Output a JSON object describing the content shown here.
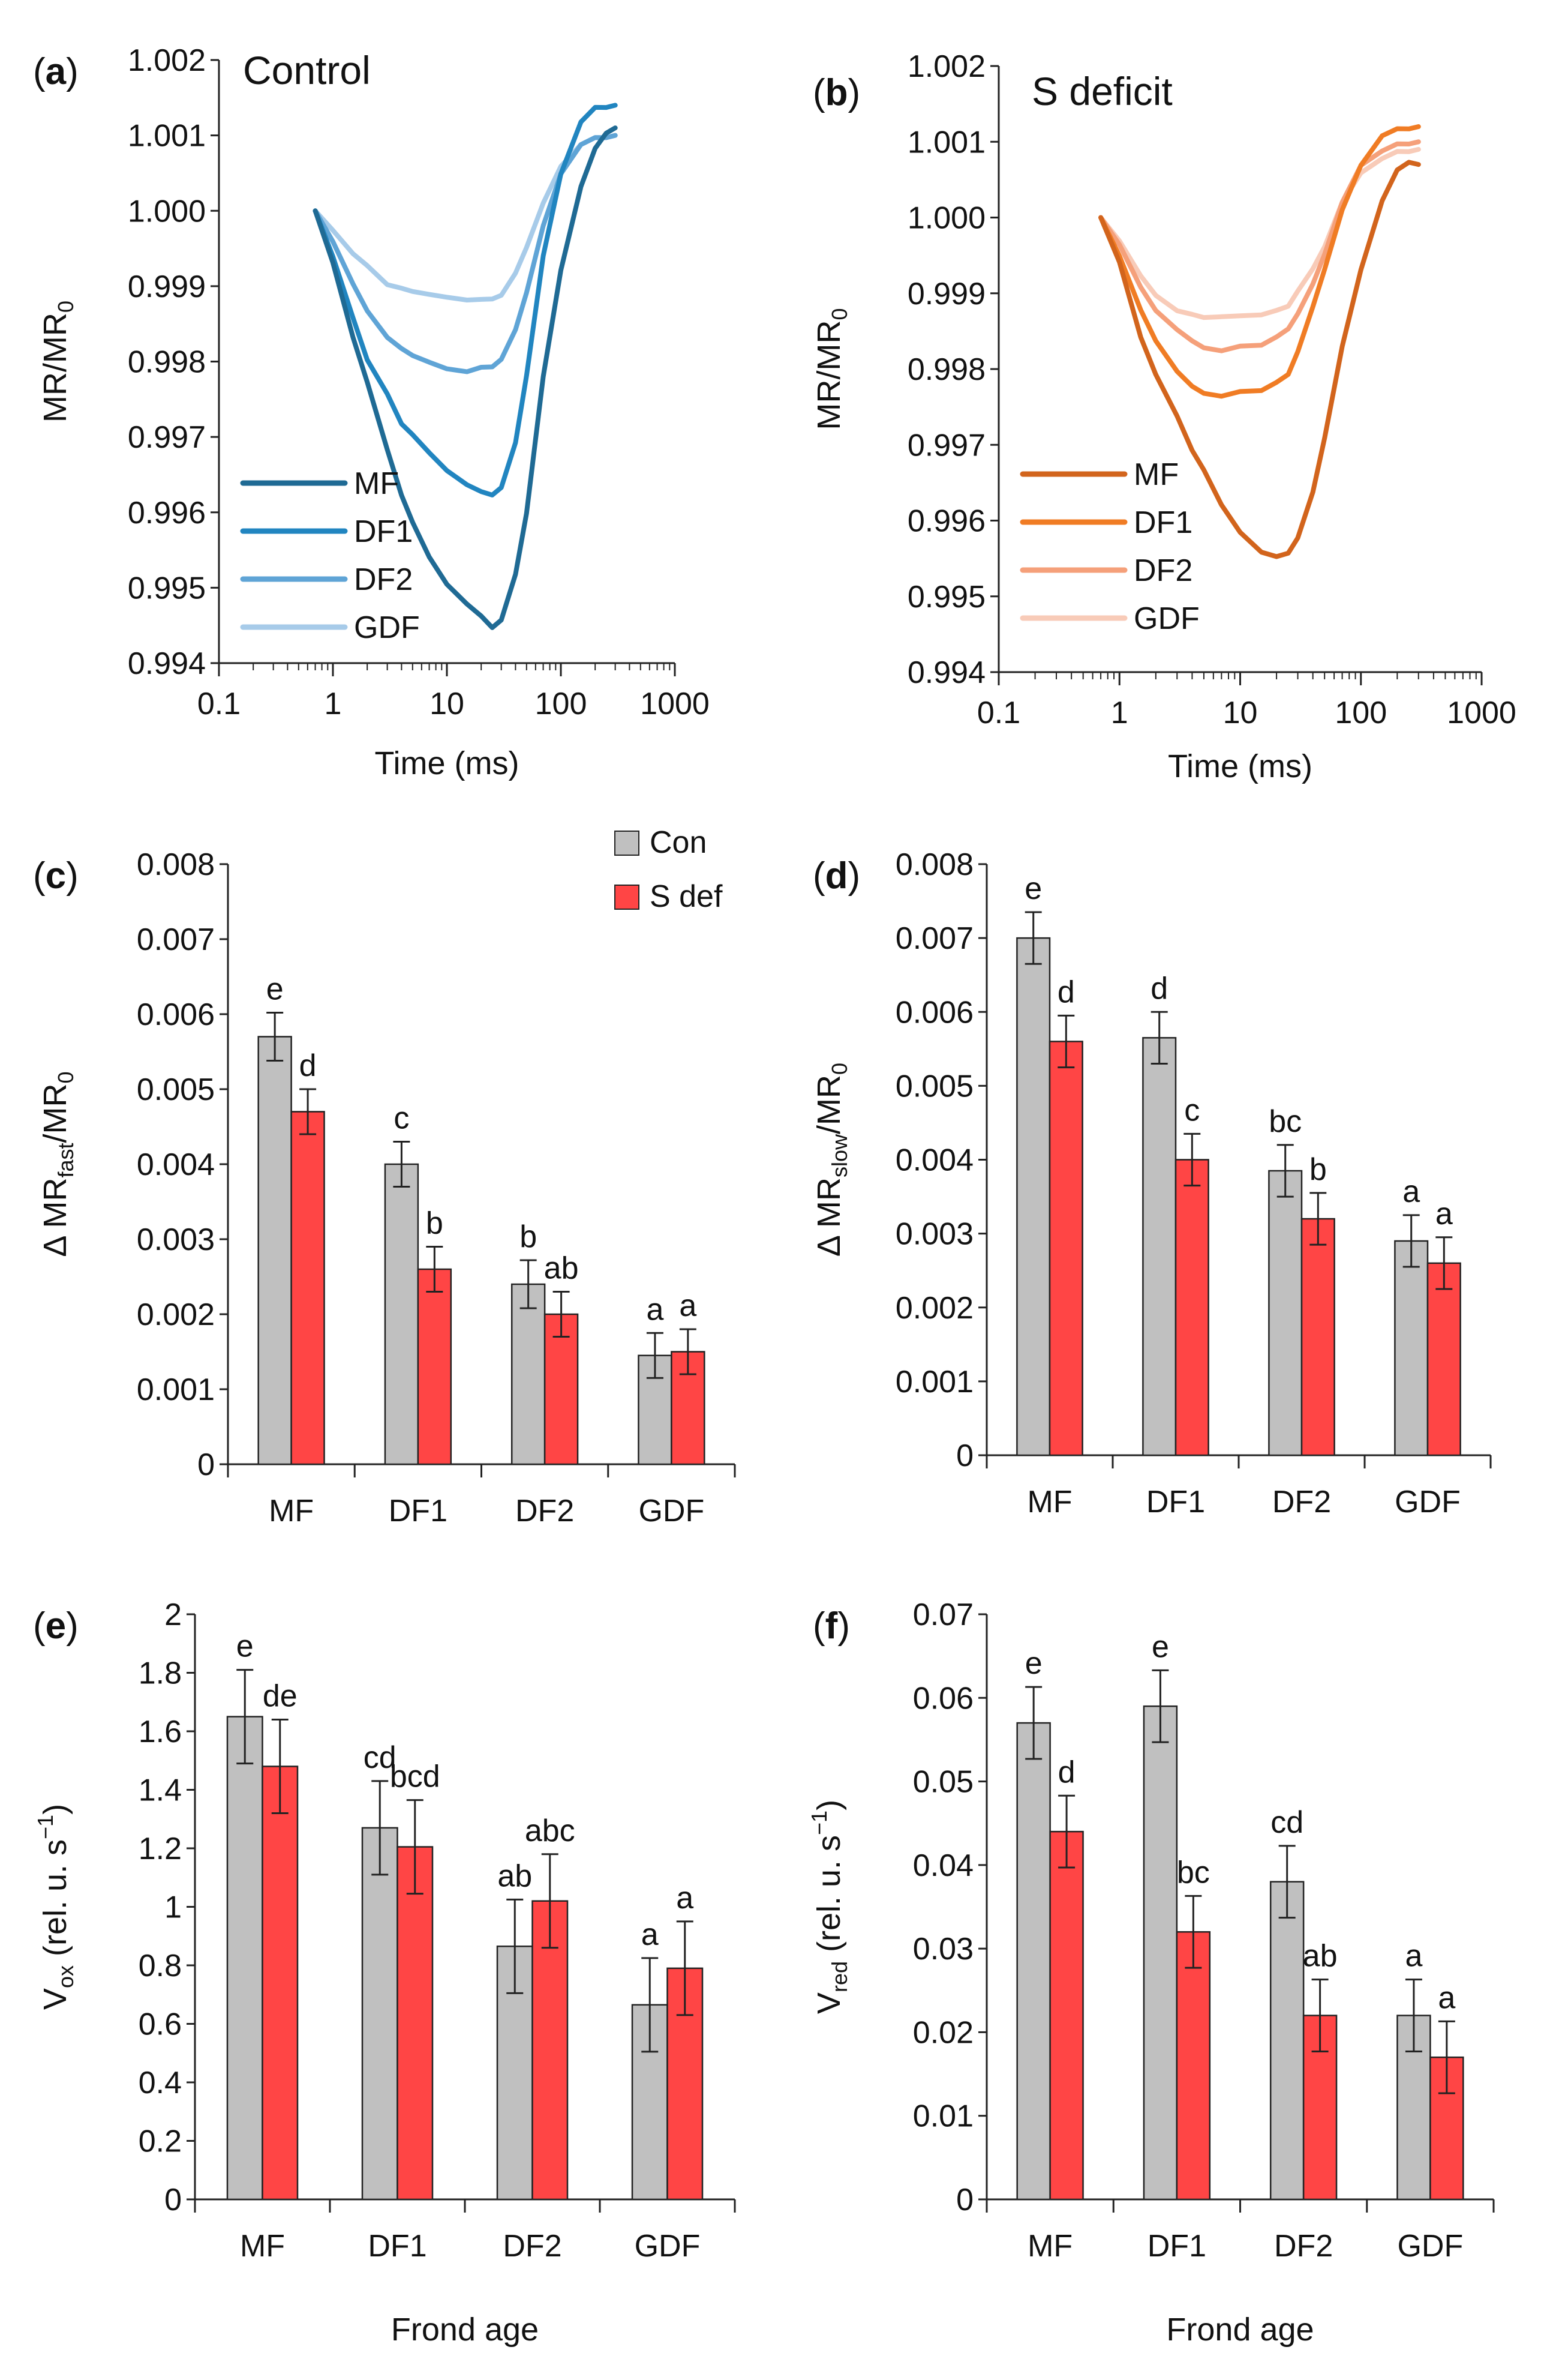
{
  "chart_data": [
    {
      "panel": "a",
      "type": "line",
      "title": "Control",
      "xlabel": "Time (ms)",
      "ylabel": "MR/MR",
      "ylabel_sub": "0",
      "xscale": "log",
      "xlim": [
        0.1,
        1000
      ],
      "ylim": [
        0.994,
        1.002
      ],
      "xticks": [
        "0.1",
        "1",
        "10",
        "100",
        "1000"
      ],
      "yticks": [
        "0.994",
        "0.995",
        "0.996",
        "0.997",
        "0.998",
        "0.999",
        "1.000",
        "1.001",
        "1.002"
      ],
      "legend_position": "bottom-left",
      "series": [
        {
          "name": "MF",
          "color": "#1f6a94",
          "x": [
            0.7,
            1,
            1.5,
            2,
            3,
            4,
            5,
            7,
            10,
            15,
            20,
            25,
            30,
            40,
            50,
            70,
            100,
            150,
            200,
            250,
            300
          ],
          "y": [
            1.0,
            0.9993,
            0.9983,
            0.9977,
            0.9968,
            0.9962,
            0.99585,
            0.9954,
            0.99505,
            0.9948,
            0.99465,
            0.9945,
            0.9946,
            0.9952,
            0.996,
            0.9978,
            0.9992,
            1.0003,
            1.0008,
            1.001,
            1.0011
          ]
        },
        {
          "name": "DF1",
          "color": "#2185c0",
          "x": [
            0.7,
            1,
            1.5,
            2,
            3,
            4,
            5,
            7,
            10,
            15,
            20,
            25,
            30,
            40,
            50,
            70,
            100,
            150,
            200,
            250,
            300
          ],
          "y": [
            1.0,
            0.9994,
            0.9986,
            0.99805,
            0.9976,
            0.9972,
            0.99705,
            0.9968,
            0.99655,
            0.99635,
            0.99625,
            0.9962,
            0.9963,
            0.9969,
            0.9978,
            0.9994,
            1.0005,
            1.0012,
            1.0014,
            1.0014,
            1.0014
          ]
        },
        {
          "name": "DF2",
          "color": "#5fa4d6",
          "x": [
            0.7,
            1,
            1.5,
            2,
            3,
            4,
            5,
            7,
            10,
            15,
            20,
            25,
            30,
            40,
            50,
            70,
            100,
            150,
            200,
            250,
            300
          ],
          "y": [
            1.0,
            0.9996,
            0.99905,
            0.9987,
            0.99835,
            0.9982,
            0.9981,
            0.998,
            0.9979,
            0.99785,
            0.9979,
            0.9979,
            0.998,
            0.9984,
            0.9989,
            0.9998,
            1.0005,
            1.0009,
            1.001,
            1.001,
            1.001
          ]
        },
        {
          "name": "GDF",
          "color": "#a7cbe9",
          "x": [
            0.7,
            1,
            1.5,
            2,
            3,
            4,
            5,
            7,
            10,
            15,
            20,
            25,
            30,
            40,
            50,
            70,
            100,
            150,
            200,
            250,
            300
          ],
          "y": [
            1.0,
            0.99975,
            0.99945,
            0.9993,
            0.99905,
            0.999,
            0.99895,
            0.9989,
            0.99885,
            0.9988,
            0.9988,
            0.9988,
            0.99885,
            0.99915,
            0.9995,
            1.0001,
            1.0006,
            1.0009,
            1.001,
            1.001,
            1.001
          ]
        }
      ]
    },
    {
      "panel": "b",
      "type": "line",
      "title": "S deficit",
      "xlabel": "Time (ms)",
      "ylabel": "MR/MR",
      "ylabel_sub": "0",
      "xscale": "log",
      "xlim": [
        0.1,
        1000
      ],
      "ylim": [
        0.994,
        1.002
      ],
      "xticks": [
        "0.1",
        "1",
        "10",
        "100",
        "1000"
      ],
      "yticks": [
        "0.994",
        "0.995",
        "0.996",
        "0.997",
        "0.998",
        "0.999",
        "1.000",
        "1.001",
        "1.002"
      ],
      "legend_position": "bottom-left",
      "series": [
        {
          "name": "MF",
          "color": "#d2641c",
          "x": [
            0.7,
            1,
            1.5,
            2,
            3,
            4,
            5,
            7,
            10,
            15,
            20,
            25,
            30,
            40,
            50,
            70,
            100,
            150,
            200,
            250,
            300
          ],
          "y": [
            1.0,
            0.9994,
            0.9984,
            0.9979,
            0.99735,
            0.9969,
            0.99665,
            0.9962,
            0.99585,
            0.9956,
            0.99555,
            0.9956,
            0.9958,
            0.9964,
            0.9971,
            0.9983,
            0.9993,
            1.0002,
            1.0006,
            1.0007,
            1.0007
          ]
        },
        {
          "name": "DF1",
          "color": "#f07c24",
          "x": [
            0.7,
            1,
            1.5,
            2,
            3,
            4,
            5,
            7,
            10,
            15,
            20,
            25,
            30,
            40,
            50,
            70,
            100,
            150,
            200,
            250,
            300
          ],
          "y": [
            1.0,
            0.9995,
            0.9988,
            0.9984,
            0.998,
            0.9978,
            0.9977,
            0.99765,
            0.9977,
            0.9977,
            0.9978,
            0.9979,
            0.9982,
            0.9988,
            0.9993,
            1.0001,
            1.0007,
            1.0011,
            1.0012,
            1.0012,
            1.0012
          ]
        },
        {
          "name": "DF2",
          "color": "#f5a07a",
          "x": [
            0.7,
            1,
            1.5,
            2,
            3,
            4,
            5,
            7,
            10,
            15,
            20,
            25,
            30,
            40,
            50,
            70,
            100,
            150,
            200,
            250,
            300
          ],
          "y": [
            1.0,
            0.99965,
            0.9991,
            0.9988,
            0.99855,
            0.9984,
            0.9983,
            0.99825,
            0.9983,
            0.9983,
            0.9984,
            0.9985,
            0.9987,
            0.9991,
            0.9995,
            1.0002,
            1.0007,
            1.0009,
            1.001,
            1.001,
            1.001
          ]
        },
        {
          "name": "GDF",
          "color": "#f8cbb8",
          "x": [
            0.7,
            1,
            1.5,
            2,
            3,
            4,
            5,
            7,
            10,
            15,
            20,
            25,
            30,
            40,
            50,
            70,
            100,
            150,
            200,
            250,
            300
          ],
          "y": [
            1.0,
            0.9997,
            0.99925,
            0.999,
            0.9988,
            0.99875,
            0.9987,
            0.9987,
            0.9987,
            0.9987,
            0.99875,
            0.9988,
            0.999,
            0.9993,
            0.9996,
            1.0002,
            1.0006,
            1.0008,
            1.0009,
            1.0009,
            1.0009
          ]
        }
      ]
    },
    {
      "panel": "c",
      "type": "bar",
      "categories": [
        "MF",
        "DF1",
        "DF2",
        "GDF"
      ],
      "ylabel": "Δ MR",
      "ylabel_sub": "fast",
      "ylabel_suffix": "/MR",
      "ylabel_suffix_sub": "0",
      "ylim": [
        0,
        0.008
      ],
      "yticks": [
        "0",
        "0.001",
        "0.002",
        "0.003",
        "0.004",
        "0.005",
        "0.006",
        "0.007",
        "0.008"
      ],
      "legend_position": "top-right",
      "series": [
        {
          "name": "Con",
          "color": "#c0c0c0",
          "values": [
            0.0057,
            0.004,
            0.0024,
            0.00145
          ],
          "errors": [
            0.00032,
            0.0003,
            0.00032,
            0.0003
          ],
          "labels": [
            "e",
            "c",
            "b",
            "a"
          ]
        },
        {
          "name": "S def",
          "color": "#ff4545",
          "values": [
            0.0047,
            0.0026,
            0.002,
            0.0015
          ],
          "errors": [
            0.0003,
            0.0003,
            0.0003,
            0.0003
          ],
          "labels": [
            "d",
            "b",
            "ab",
            "a"
          ]
        }
      ]
    },
    {
      "panel": "d",
      "type": "bar",
      "categories": [
        "MF",
        "DF1",
        "DF2",
        "GDF"
      ],
      "ylabel": "Δ MR",
      "ylabel_sub": "slow",
      "ylabel_suffix": "/MR",
      "ylabel_suffix_sub": "0",
      "ylim": [
        0,
        0.008
      ],
      "yticks": [
        "0",
        "0.001",
        "0.002",
        "0.003",
        "0.004",
        "0.005",
        "0.006",
        "0.007",
        "0.008"
      ],
      "series": [
        {
          "name": "Con",
          "color": "#c0c0c0",
          "values": [
            0.007,
            0.00565,
            0.00385,
            0.0029
          ],
          "errors": [
            0.00035,
            0.00035,
            0.00035,
            0.00035
          ],
          "labels": [
            "e",
            "d",
            "bc",
            "a"
          ]
        },
        {
          "name": "S def",
          "color": "#ff4545",
          "values": [
            0.0056,
            0.004,
            0.0032,
            0.0026
          ],
          "errors": [
            0.00035,
            0.00035,
            0.00035,
            0.00035
          ],
          "labels": [
            "d",
            "c",
            "b",
            "a"
          ]
        }
      ]
    },
    {
      "panel": "e",
      "type": "bar",
      "categories": [
        "MF",
        "DF1",
        "DF2",
        "GDF"
      ],
      "xlabel": "Frond age",
      "ylabel": "V",
      "ylabel_sub": "ox",
      "ylabel_suffix": " (rel. u. s",
      "ylabel_sup": "−1",
      "ylabel_end": ")",
      "ylim": [
        0,
        2
      ],
      "yticks": [
        "0",
        "0.2",
        "0.4",
        "0.6",
        "0.8",
        "1",
        "1.2",
        "1.4",
        "1.6",
        "1.8",
        "2"
      ],
      "series": [
        {
          "name": "Con",
          "color": "#c0c0c0",
          "values": [
            1.65,
            1.27,
            0.865,
            0.665
          ],
          "errors": [
            0.16,
            0.16,
            0.16,
            0.16
          ],
          "labels": [
            "e",
            "cd",
            "ab",
            "a"
          ]
        },
        {
          "name": "S def",
          "color": "#ff4545",
          "values": [
            1.48,
            1.205,
            1.02,
            0.79
          ],
          "errors": [
            0.16,
            0.16,
            0.16,
            0.16
          ],
          "labels": [
            "de",
            "bcd",
            "abc",
            "a"
          ]
        }
      ]
    },
    {
      "panel": "f",
      "type": "bar",
      "categories": [
        "MF",
        "DF1",
        "DF2",
        "GDF"
      ],
      "xlabel": "Frond age",
      "ylabel": "V",
      "ylabel_sub": "red",
      "ylabel_suffix": " (rel. u. s",
      "ylabel_sup": "−1",
      "ylabel_end": ")",
      "ylim": [
        0,
        0.07
      ],
      "yticks": [
        "0",
        "0.01",
        "0.02",
        "0.03",
        "0.04",
        "0.05",
        "0.06",
        "0.07"
      ],
      "series": [
        {
          "name": "Con",
          "color": "#c0c0c0",
          "values": [
            0.057,
            0.059,
            0.038,
            0.022
          ],
          "errors": [
            0.0043,
            0.0043,
            0.0043,
            0.0043
          ],
          "labels": [
            "e",
            "e",
            "cd",
            "a"
          ]
        },
        {
          "name": "S def",
          "color": "#ff4545",
          "values": [
            0.044,
            0.032,
            0.022,
            0.017
          ],
          "errors": [
            0.0043,
            0.0043,
            0.0043,
            0.0043
          ],
          "labels": [
            "d",
            "bc",
            "ab",
            "a"
          ]
        }
      ]
    }
  ]
}
